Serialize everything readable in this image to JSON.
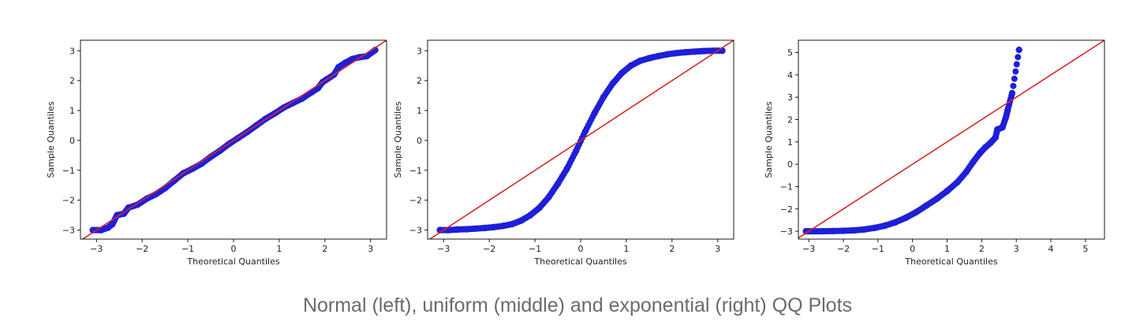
{
  "caption": "Normal (left), uniform (middle) and exponential (right) QQ Plots",
  "colors": {
    "points": "#1f1fd8",
    "line": "#d62728",
    "frame": "#000000",
    "text": "#222222"
  },
  "chart_data": [
    {
      "type": "scatter",
      "distribution": "normal",
      "xlabel": "Theoretical Quantiles",
      "ylabel": "Sample Quantiles",
      "xlim": [
        -3.35,
        3.35
      ],
      "ylim": [
        -3.3,
        3.35
      ],
      "xticks": [
        -3,
        -2,
        -1,
        0,
        1,
        2,
        3
      ],
      "yticks": [
        -3,
        -2,
        -1,
        0,
        1,
        2,
        3
      ],
      "reference_line": [
        [
          -3.35,
          -3.35
        ],
        [
          3.35,
          3.35
        ]
      ],
      "points": [
        [
          -3.08,
          -3.0
        ],
        [
          -2.9,
          -3.0
        ],
        [
          -2.75,
          -2.92
        ],
        [
          -2.65,
          -2.8
        ],
        [
          -2.55,
          -2.5
        ],
        [
          -2.4,
          -2.45
        ],
        [
          -2.3,
          -2.25
        ],
        [
          -2.1,
          -2.15
        ],
        [
          -1.9,
          -1.95
        ],
        [
          -1.7,
          -1.8
        ],
        [
          -1.5,
          -1.6
        ],
        [
          -1.3,
          -1.35
        ],
        [
          -1.1,
          -1.1
        ],
        [
          -0.9,
          -0.95
        ],
        [
          -0.7,
          -0.78
        ],
        [
          -0.5,
          -0.55
        ],
        [
          -0.3,
          -0.35
        ],
        [
          -0.1,
          -0.12
        ],
        [
          0.1,
          0.08
        ],
        [
          0.3,
          0.28
        ],
        [
          0.5,
          0.5
        ],
        [
          0.7,
          0.72
        ],
        [
          0.9,
          0.9
        ],
        [
          1.1,
          1.1
        ],
        [
          1.3,
          1.25
        ],
        [
          1.5,
          1.4
        ],
        [
          1.7,
          1.6
        ],
        [
          1.85,
          1.75
        ],
        [
          1.95,
          1.95
        ],
        [
          2.05,
          2.05
        ],
        [
          2.2,
          2.2
        ],
        [
          2.3,
          2.45
        ],
        [
          2.45,
          2.6
        ],
        [
          2.6,
          2.72
        ],
        [
          2.75,
          2.78
        ],
        [
          2.92,
          2.82
        ],
        [
          3.1,
          3.02
        ]
      ]
    },
    {
      "type": "scatter",
      "distribution": "uniform",
      "xlabel": "Theoretical Quantiles",
      "ylabel": "Sample Quantiles",
      "xlim": [
        -3.35,
        3.35
      ],
      "ylim": [
        -3.3,
        3.35
      ],
      "xticks": [
        -3,
        -2,
        -1,
        0,
        1,
        2,
        3
      ],
      "yticks": [
        -3,
        -2,
        -1,
        0,
        1,
        2,
        3
      ],
      "reference_line": [
        [
          -3.35,
          -3.35
        ],
        [
          3.35,
          3.35
        ]
      ],
      "points": [
        [
          -3.08,
          -3.0
        ],
        [
          -2.9,
          -3.0
        ],
        [
          -2.7,
          -2.98
        ],
        [
          -2.5,
          -2.97
        ],
        [
          -2.3,
          -2.95
        ],
        [
          -2.1,
          -2.93
        ],
        [
          -1.9,
          -2.9
        ],
        [
          -1.7,
          -2.86
        ],
        [
          -1.5,
          -2.8
        ],
        [
          -1.3,
          -2.68
        ],
        [
          -1.1,
          -2.5
        ],
        [
          -0.9,
          -2.25
        ],
        [
          -0.7,
          -1.9
        ],
        [
          -0.5,
          -1.45
        ],
        [
          -0.3,
          -0.95
        ],
        [
          -0.1,
          -0.35
        ],
        [
          0.1,
          0.3
        ],
        [
          0.3,
          0.9
        ],
        [
          0.5,
          1.45
        ],
        [
          0.7,
          1.9
        ],
        [
          0.9,
          2.25
        ],
        [
          1.1,
          2.5
        ],
        [
          1.3,
          2.66
        ],
        [
          1.5,
          2.75
        ],
        [
          1.7,
          2.82
        ],
        [
          1.9,
          2.88
        ],
        [
          2.1,
          2.92
        ],
        [
          2.3,
          2.95
        ],
        [
          2.5,
          2.97
        ],
        [
          2.7,
          2.99
        ],
        [
          2.9,
          3.0
        ],
        [
          3.1,
          3.0
        ]
      ]
    },
    {
      "type": "scatter",
      "distribution": "exponential",
      "xlabel": "Theoretical Quantiles",
      "ylabel": "Sample Quantiles",
      "xlim": [
        -3.3,
        5.55
      ],
      "ylim": [
        -3.35,
        5.55
      ],
      "xticks": [
        -3,
        -2,
        -1,
        0,
        1,
        2,
        3,
        4,
        5
      ],
      "yticks": [
        -3,
        -2,
        -1,
        0,
        1,
        2,
        3,
        4,
        5
      ],
      "reference_line": [
        [
          -3.3,
          -3.3
        ],
        [
          5.55,
          5.55
        ]
      ],
      "points": [
        [
          -3.08,
          -3.0
        ],
        [
          -2.9,
          -3.0
        ],
        [
          -2.6,
          -3.0
        ],
        [
          -2.3,
          -2.99
        ],
        [
          -2.0,
          -2.98
        ],
        [
          -1.7,
          -2.96
        ],
        [
          -1.4,
          -2.92
        ],
        [
          -1.1,
          -2.85
        ],
        [
          -0.8,
          -2.75
        ],
        [
          -0.5,
          -2.6
        ],
        [
          -0.2,
          -2.4
        ],
        [
          0.1,
          -2.15
        ],
        [
          0.4,
          -1.85
        ],
        [
          0.7,
          -1.55
        ],
        [
          1.0,
          -1.2
        ],
        [
          1.3,
          -0.8
        ],
        [
          1.55,
          -0.35
        ],
        [
          1.75,
          0.1
        ],
        [
          1.95,
          0.5
        ],
        [
          2.1,
          0.75
        ],
        [
          2.25,
          0.95
        ],
        [
          2.4,
          1.2
        ],
        [
          2.45,
          1.55
        ],
        [
          2.6,
          1.65
        ],
        [
          2.7,
          2.1
        ],
        [
          2.75,
          2.42
        ],
        [
          2.88,
          3.18
        ],
        [
          3.08,
          5.12
        ]
      ]
    }
  ]
}
